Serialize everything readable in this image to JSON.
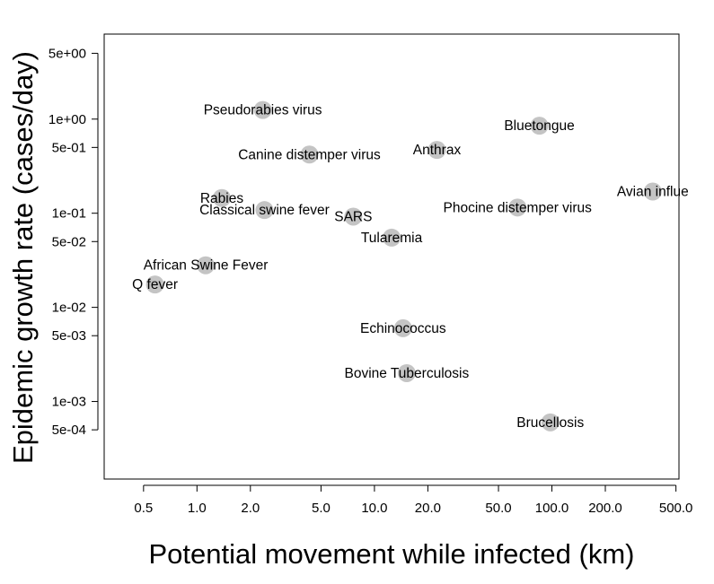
{
  "chart_data": {
    "type": "scatter",
    "xlabel": "Potential movement while infected (km)",
    "ylabel": "Epidemic growth rate (cases/day)",
    "x_scale": "log",
    "y_scale": "log",
    "xlim": [
      0.3,
      520
    ],
    "ylim": [
      0.00015,
      8
    ],
    "x_ticks": [
      {
        "value": 0.5,
        "label": "0.5"
      },
      {
        "value": 1,
        "label": "1.0"
      },
      {
        "value": 2,
        "label": "2.0"
      },
      {
        "value": 5,
        "label": "5.0"
      },
      {
        "value": 10,
        "label": "10.0"
      },
      {
        "value": 20,
        "label": "20.0"
      },
      {
        "value": 50,
        "label": "50.0"
      },
      {
        "value": 100,
        "label": "100.0"
      },
      {
        "value": 200,
        "label": "200.0"
      },
      {
        "value": 500,
        "label": "500.0"
      }
    ],
    "y_ticks": [
      {
        "value": 5,
        "label": "5e+00"
      },
      {
        "value": 1,
        "label": "1e+00"
      },
      {
        "value": 0.5,
        "label": "5e-01"
      },
      {
        "value": 0.1,
        "label": "1e-01"
      },
      {
        "value": 0.05,
        "label": "5e-02"
      },
      {
        "value": 0.01,
        "label": "1e-02"
      },
      {
        "value": 0.005,
        "label": "5e-03"
      },
      {
        "value": 0.001,
        "label": "1e-03"
      },
      {
        "value": 0.0005,
        "label": "5e-04"
      }
    ],
    "grid": false,
    "marker_color": "#c4c4c4",
    "points": [
      {
        "name": "Pseudorabies virus",
        "x": 2.35,
        "y": 1.25
      },
      {
        "name": "Bluetongue",
        "x": 85,
        "y": 0.85
      },
      {
        "name": "Canine distemper virus",
        "x": 4.3,
        "y": 0.42
      },
      {
        "name": "Anthrax",
        "x": 22.5,
        "y": 0.47
      },
      {
        "name": "Avian influe",
        "x": 370,
        "y": 0.17
      },
      {
        "name": "Rabies",
        "x": 1.38,
        "y": 0.145
      },
      {
        "name": "Classical swine fever",
        "x": 2.4,
        "y": 0.108
      },
      {
        "name": "Phocine distemper virus",
        "x": 64,
        "y": 0.115
      },
      {
        "name": "SARS",
        "x": 7.6,
        "y": 0.092
      },
      {
        "name": "Tularemia",
        "x": 12.5,
        "y": 0.055
      },
      {
        "name": "African Swine Fever",
        "x": 1.12,
        "y": 0.028
      },
      {
        "name": "Q fever",
        "x": 0.58,
        "y": 0.0175
      },
      {
        "name": "Echinococcus",
        "x": 14.5,
        "y": 0.006
      },
      {
        "name": "Bovine Tuberculosis",
        "x": 15.2,
        "y": 0.002
      },
      {
        "name": "Brucellosis",
        "x": 98,
        "y": 0.0006
      }
    ]
  }
}
